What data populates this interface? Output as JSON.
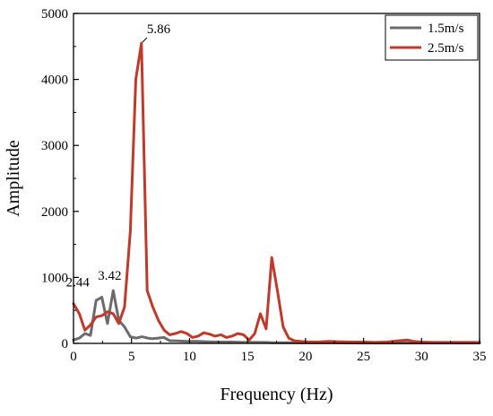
{
  "chart_data": {
    "type": "line",
    "title": "",
    "xlabel": "Frequency (Hz)",
    "ylabel": "Amplitude",
    "xlim": [
      0,
      35
    ],
    "ylim": [
      0,
      5000
    ],
    "xticks": [
      0,
      5,
      10,
      15,
      20,
      25,
      30,
      35
    ],
    "yticks": [
      0,
      1000,
      2000,
      3000,
      4000,
      5000
    ],
    "grid": false,
    "legend_position": "top-right",
    "series": [
      {
        "name": "1.5m/s",
        "color": "#6b6b6b",
        "points": [
          [
            0,
            50
          ],
          [
            0.5,
            80
          ],
          [
            1.0,
            150
          ],
          [
            1.46,
            120
          ],
          [
            1.95,
            650
          ],
          [
            2.44,
            700
          ],
          [
            2.93,
            300
          ],
          [
            3.42,
            800
          ],
          [
            3.9,
            350
          ],
          [
            4.4,
            250
          ],
          [
            4.9,
            100
          ],
          [
            5.4,
            80
          ],
          [
            5.9,
            100
          ],
          [
            6.4,
            80
          ],
          [
            6.8,
            70
          ],
          [
            7.3,
            80
          ],
          [
            7.8,
            90
          ],
          [
            8.3,
            40
          ],
          [
            8.8,
            40
          ],
          [
            9.8,
            30
          ],
          [
            10.7,
            30
          ],
          [
            11.7,
            25
          ],
          [
            12.7,
            20
          ],
          [
            13.7,
            20
          ],
          [
            14.7,
            15
          ],
          [
            15.6,
            15
          ],
          [
            16.6,
            15
          ],
          [
            17.1,
            10
          ],
          [
            18,
            10
          ],
          [
            20,
            8
          ],
          [
            22,
            8
          ],
          [
            25,
            5
          ],
          [
            28,
            5
          ],
          [
            30,
            5
          ],
          [
            35,
            5
          ]
        ]
      },
      {
        "name": "2.5m/s",
        "color": "#c0392b",
        "points": [
          [
            0,
            600
          ],
          [
            0.5,
            450
          ],
          [
            0.98,
            200
          ],
          [
            1.46,
            280
          ],
          [
            1.95,
            400
          ],
          [
            2.44,
            420
          ],
          [
            2.93,
            480
          ],
          [
            3.42,
            450
          ],
          [
            3.9,
            300
          ],
          [
            4.4,
            550
          ],
          [
            4.9,
            1700
          ],
          [
            5.37,
            4000
          ],
          [
            5.86,
            4550
          ],
          [
            6.35,
            800
          ],
          [
            6.84,
            550
          ],
          [
            7.32,
            350
          ],
          [
            7.81,
            200
          ],
          [
            8.3,
            130
          ],
          [
            8.79,
            150
          ],
          [
            9.28,
            180
          ],
          [
            9.77,
            150
          ],
          [
            10.25,
            90
          ],
          [
            10.74,
            110
          ],
          [
            11.23,
            160
          ],
          [
            11.72,
            140
          ],
          [
            12.21,
            110
          ],
          [
            12.7,
            130
          ],
          [
            13.18,
            90
          ],
          [
            13.67,
            110
          ],
          [
            14.16,
            150
          ],
          [
            14.65,
            130
          ],
          [
            15.14,
            50
          ],
          [
            15.62,
            150
          ],
          [
            16.11,
            450
          ],
          [
            16.6,
            220
          ],
          [
            17.09,
            1300
          ],
          [
            17.58,
            800
          ],
          [
            18.07,
            250
          ],
          [
            18.55,
            80
          ],
          [
            19.04,
            40
          ],
          [
            19.53,
            30
          ],
          [
            20,
            25
          ],
          [
            21,
            20
          ],
          [
            22,
            30
          ],
          [
            23,
            25
          ],
          [
            24,
            20
          ],
          [
            25,
            20
          ],
          [
            26,
            15
          ],
          [
            27,
            20
          ],
          [
            28,
            40
          ],
          [
            28.8,
            50
          ],
          [
            29.3,
            30
          ],
          [
            30,
            20
          ],
          [
            31,
            15
          ],
          [
            32,
            15
          ],
          [
            33,
            15
          ],
          [
            34,
            15
          ],
          [
            35,
            15
          ]
        ]
      }
    ],
    "annotations": [
      {
        "text": "5.86",
        "x": 5.86,
        "y": 4550
      },
      {
        "text": "3.42",
        "x": 3.42,
        "y": 800
      },
      {
        "text": "2.44",
        "x": 2.44,
        "y": 700
      }
    ]
  }
}
